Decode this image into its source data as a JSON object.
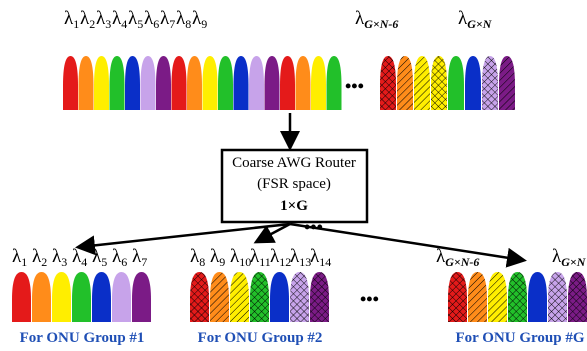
{
  "top_labels": [
    {
      "symbol": "λ",
      "sub": "1"
    },
    {
      "symbol": "λ",
      "sub": "2"
    },
    {
      "symbol": "λ",
      "sub": "3"
    },
    {
      "symbol": "λ",
      "sub": "4"
    },
    {
      "symbol": "λ",
      "sub": "5"
    },
    {
      "symbol": "λ",
      "sub": "6"
    },
    {
      "symbol": "λ",
      "sub": "7"
    },
    {
      "symbol": "λ",
      "sub": "8"
    },
    {
      "symbol": "λ",
      "sub": "9"
    },
    {
      "symbol": "λ",
      "sub": "G×N-6"
    },
    {
      "symbol": "λ",
      "sub": "G×N"
    }
  ],
  "router": {
    "line1": "Coarse AWG Router",
    "line2": "(FSR space)",
    "line3": "1×G"
  },
  "ellipses": [
    "•••",
    "•••",
    "•••"
  ],
  "groups": [
    {
      "labels": [
        {
          "symbol": "λ",
          "sub": "1"
        },
        {
          "symbol": "λ",
          "sub": "2"
        },
        {
          "symbol": "λ",
          "sub": "3"
        },
        {
          "symbol": "λ",
          "sub": "4"
        },
        {
          "symbol": "λ",
          "sub": "5"
        },
        {
          "symbol": "λ",
          "sub": "6"
        },
        {
          "symbol": "λ",
          "sub": "7"
        }
      ],
      "caption": "For ONU Group #1"
    },
    {
      "labels": [
        {
          "symbol": "λ",
          "sub": "8"
        },
        {
          "symbol": "λ",
          "sub": "9"
        },
        {
          "symbol": "λ",
          "sub": "10"
        },
        {
          "symbol": "λ",
          "sub": "11"
        },
        {
          "symbol": "λ",
          "sub": "12"
        },
        {
          "symbol": "λ",
          "sub": "13"
        },
        {
          "symbol": "λ",
          "sub": "14"
        }
      ],
      "caption": "For ONU Group #2"
    },
    {
      "labels": [
        {
          "symbol": "λ",
          "sub": "G×N-6"
        },
        {
          "symbol": "λ",
          "sub": "G×N"
        }
      ],
      "caption": "For ONU Group #G"
    }
  ]
}
